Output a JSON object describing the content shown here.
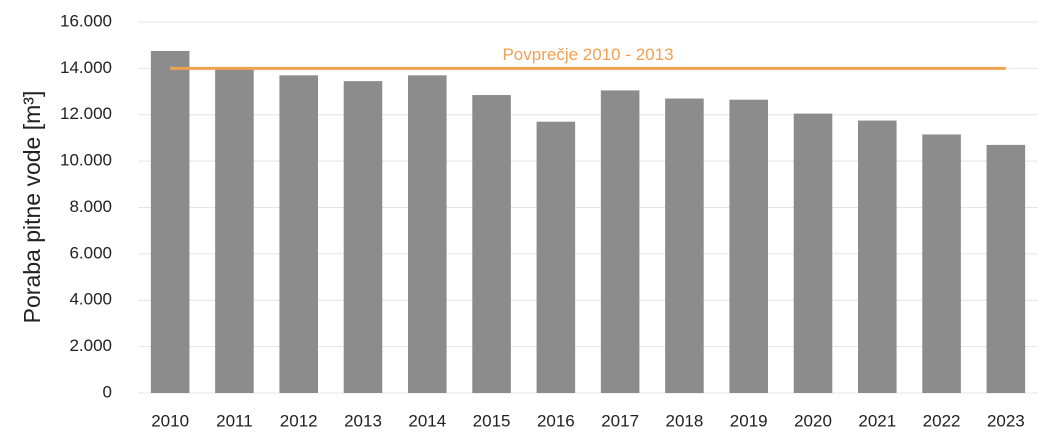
{
  "chart_data": {
    "type": "bar",
    "ylabel": "Poraba pitne vode [m³]",
    "categories": [
      "2010",
      "2011",
      "2012",
      "2013",
      "2014",
      "2015",
      "2016",
      "2017",
      "2018",
      "2019",
      "2020",
      "2021",
      "2022",
      "2023"
    ],
    "values": [
      14750,
      14000,
      13700,
      13450,
      13700,
      12850,
      11700,
      13050,
      12700,
      12650,
      12050,
      11750,
      11150,
      10700
    ],
    "color": "#8c8c8c",
    "reference_line": {
      "label": "Povprečje 2010 - 2013",
      "value": 14000,
      "color": "#f0a050"
    },
    "ylim": [
      0,
      16000
    ],
    "yticks": [
      0,
      {
        "value": 2000,
        "label": "2.000"
      },
      {
        "value": 4000,
        "label": "4.000"
      },
      {
        "value": 6000,
        "label": "6.000"
      },
      {
        "value": 8000,
        "label": "8.000"
      },
      {
        "value": 10000,
        "label": "10.000"
      },
      {
        "value": 12000,
        "label": "12.000"
      },
      {
        "value": 14000,
        "label": "14.000"
      },
      {
        "value": 16000,
        "label": "16.000"
      }
    ],
    "grid": true
  }
}
